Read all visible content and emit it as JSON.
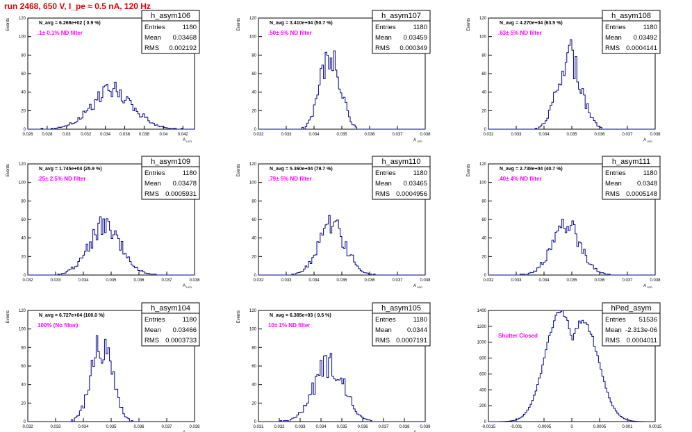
{
  "page_title": "run 2468,   650 V, I_pe ≈ 0.5 nA, 120 Hz",
  "colors": {
    "title": "#e00000",
    "annotation": "#ff00ff",
    "hist_line": "#00008b",
    "axis": "#000000"
  },
  "chart_data": [
    {
      "type": "histogram",
      "name": "h_asym106",
      "stats": {
        "Entries": "1180",
        "Mean": "0.03468",
        "RMS": "0.002192"
      },
      "navg_text": "N_avg = 6.268e+02 ( 0.9 %)",
      "filter_text": ".1± 0.1% ND filter",
      "ylabel": "Events",
      "xlabel": "A_LED",
      "ylim": [
        0,
        120
      ],
      "yticks": [
        0,
        20,
        40,
        60,
        80,
        100,
        120
      ],
      "xlim": [
        0.026,
        0.0432
      ],
      "xticks": [
        0.026,
        0.028,
        0.03,
        0.032,
        0.034,
        0.036,
        0.038,
        0.04,
        0.042
      ],
      "xtick_labels": [
        "0.026",
        "0.028",
        "0.03",
        "0.032",
        "0.034",
        "0.036",
        "0.038",
        "0.04",
        "0.042"
      ],
      "dist": {
        "mean": 0.03468,
        "sd": 0.002192,
        "peak": 43,
        "seed": 106
      }
    },
    {
      "type": "histogram",
      "name": "h_asym107",
      "stats": {
        "Entries": "1180",
        "Mean": "0.03459",
        "RMS": "0.000349"
      },
      "navg_text": "N_avg = 3.410e+04 (50.7 %)",
      "filter_text": ".50± 5% ND filter",
      "ylabel": "Events",
      "xlabel": "A_LED",
      "ylim": [
        0,
        120
      ],
      "yticks": [
        0,
        20,
        40,
        60,
        80,
        100,
        120
      ],
      "xlim": [
        0.032,
        0.038
      ],
      "xticks": [
        0.032,
        0.033,
        0.034,
        0.035,
        0.036,
        0.037,
        0.038
      ],
      "xtick_labels": [
        "0.032",
        "0.033",
        "0.034",
        "0.035",
        "0.036",
        "0.037",
        "0.038"
      ],
      "dist": {
        "mean": 0.03459,
        "sd": 0.000349,
        "peak": 88,
        "seed": 107
      }
    },
    {
      "type": "histogram",
      "name": "h_asym108",
      "stats": {
        "Entries": "1180",
        "Mean": "0.03492",
        "RMS": "0.0004141"
      },
      "navg_text": "N_avg = 4.270e+04 (63.5 %)",
      "filter_text": ".63± 5% ND filter",
      "ylabel": "Events",
      "xlabel": "A_LED",
      "ylim": [
        0,
        120
      ],
      "yticks": [
        0,
        20,
        40,
        60,
        80,
        100,
        120
      ],
      "xlim": [
        0.032,
        0.038
      ],
      "xticks": [
        0.032,
        0.033,
        0.034,
        0.035,
        0.036,
        0.037,
        0.038
      ],
      "xtick_labels": [
        "0.032",
        "0.033",
        "0.034",
        "0.035",
        "0.036",
        "0.037",
        "0.038"
      ],
      "dist": {
        "mean": 0.03492,
        "sd": 0.0004141,
        "peak": 80,
        "seed": 108
      }
    },
    {
      "type": "histogram",
      "name": "h_asym109",
      "stats": {
        "Entries": "1180",
        "Mean": "0.03478",
        "RMS": "0.0005931"
      },
      "navg_text": "N_avg = 1.745e+04 (25.9 %)",
      "filter_text": ".25± 2.5% ND filter",
      "ylabel": "Events",
      "xlabel": "A_LED",
      "ylim": [
        0,
        120
      ],
      "yticks": [
        0,
        20,
        40,
        60,
        80,
        100,
        120
      ],
      "xlim": [
        0.032,
        0.038
      ],
      "xticks": [
        0.032,
        0.033,
        0.034,
        0.035,
        0.036,
        0.037,
        0.038
      ],
      "xtick_labels": [
        "0.032",
        "0.033",
        "0.034",
        "0.035",
        "0.036",
        "0.037",
        "0.038"
      ],
      "dist": {
        "mean": 0.03478,
        "sd": 0.0005931,
        "peak": 54,
        "seed": 109
      }
    },
    {
      "type": "histogram",
      "name": "h_asym110",
      "stats": {
        "Entries": "1180",
        "Mean": "0.03465",
        "RMS": "0.0004956"
      },
      "navg_text": "N_avg = 5.360e+04 (79.7 %)",
      "filter_text": ".79± 5% ND filter",
      "ylabel": "Events",
      "xlabel": "A_LED",
      "ylim": [
        0,
        120
      ],
      "yticks": [
        0,
        20,
        40,
        60,
        80,
        100,
        120
      ],
      "xlim": [
        0.032,
        0.038
      ],
      "xticks": [
        0.032,
        0.033,
        0.034,
        0.035,
        0.036,
        0.037,
        0.038
      ],
      "xtick_labels": [
        "0.032",
        "0.033",
        "0.034",
        "0.035",
        "0.036",
        "0.037",
        "0.038"
      ],
      "dist": {
        "mean": 0.03465,
        "sd": 0.0004956,
        "peak": 54,
        "seed": 110
      }
    },
    {
      "type": "histogram",
      "name": "h_asym111",
      "stats": {
        "Entries": "1180",
        "Mean": "0.0348",
        "RMS": "0.0005148"
      },
      "navg_text": "N_avg = 2.738e+04 (40.7 %)",
      "filter_text": ".40± 4% ND filter",
      "ylabel": "Events",
      "xlabel": "A_LED",
      "ylim": [
        0,
        120
      ],
      "yticks": [
        0,
        20,
        40,
        60,
        80,
        100,
        120
      ],
      "xlim": [
        0.032,
        0.038
      ],
      "xticks": [
        0.032,
        0.033,
        0.034,
        0.035,
        0.036,
        0.037,
        0.038
      ],
      "xtick_labels": [
        "0.032",
        "0.033",
        "0.034",
        "0.035",
        "0.036",
        "0.037",
        "0.038"
      ],
      "dist": {
        "mean": 0.0348,
        "sd": 0.0005148,
        "peak": 54,
        "seed": 111
      }
    },
    {
      "type": "histogram",
      "name": "h_asym104",
      "stats": {
        "Entries": "1180",
        "Mean": "0.03466",
        "RMS": "0.0003733"
      },
      "navg_text": "N_avg = 6.727e+04 (100.0 %)",
      "filter_text": "100% (No filter)",
      "ylabel": "Events",
      "xlabel": "A_LED",
      "ylim": [
        0,
        120
      ],
      "yticks": [
        0,
        20,
        40,
        60,
        80,
        100,
        120
      ],
      "xlim": [
        0.032,
        0.038
      ],
      "xticks": [
        0.032,
        0.033,
        0.034,
        0.035,
        0.036,
        0.037,
        0.038
      ],
      "xtick_labels": [
        "0.032",
        "0.033",
        "0.034",
        "0.035",
        "0.036",
        "0.037",
        "0.038"
      ],
      "dist": {
        "mean": 0.03466,
        "sd": 0.0003733,
        "peak": 86,
        "seed": 104
      }
    },
    {
      "type": "histogram",
      "name": "h_asym105",
      "stats": {
        "Entries": "1180",
        "Mean": "0.0344",
        "RMS": "0.0007191"
      },
      "navg_text": "N_avg = 6.385e+03 ( 9.5 %)",
      "filter_text": "10± 1% ND filter",
      "ylabel": "Events",
      "xlabel": "A_LED",
      "ylim": [
        0,
        120
      ],
      "yticks": [
        0,
        20,
        40,
        60,
        80,
        100,
        120
      ],
      "xlim": [
        0.031,
        0.039
      ],
      "xticks": [
        0.031,
        0.032,
        0.033,
        0.034,
        0.035,
        0.036,
        0.037,
        0.038,
        0.039
      ],
      "xtick_labels": [
        "0.031",
        "0.032",
        "0.033",
        "0.034",
        "0.035",
        "0.036",
        "0.037",
        "0.038",
        "0.039"
      ],
      "dist": {
        "mean": 0.0344,
        "sd": 0.0007191,
        "peak": 64,
        "seed": 105
      }
    },
    {
      "type": "histogram",
      "name": "hPed_asym",
      "stats": {
        "Entries": "51536",
        "Mean": "-2.313e-06",
        "RMS": "0.0004011"
      },
      "navg_text": "",
      "filter_text": "Shutter Closed",
      "ylabel": "",
      "xlabel": "",
      "ylim": [
        0,
        1400
      ],
      "yticks": [
        0,
        200,
        400,
        600,
        800,
        1000,
        1200,
        1400
      ],
      "xlim": [
        -0.0015,
        0.0015
      ],
      "xticks": [
        -0.0015,
        -0.001,
        -0.0005,
        0,
        0.0005,
        0.001,
        0.0015
      ],
      "xtick_labels": [
        "-0.0015",
        "-0.001",
        "-0.0005",
        "0",
        "0.0005",
        "0.001",
        "0.0015"
      ],
      "dist": {
        "bimodal": true,
        "m1": -0.0002,
        "m2": 0.0002,
        "sd": 0.00028,
        "peak": 1380,
        "seed": 200
      }
    }
  ]
}
